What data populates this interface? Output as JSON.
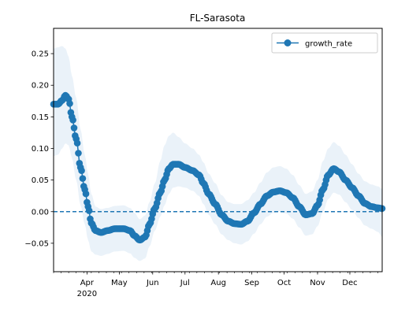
{
  "chart_data": {
    "type": "line",
    "title": "FL-Sarasota",
    "xlabel": "",
    "ylabel": "",
    "x_range": [
      "2020-03-01",
      "2020-12-31"
    ],
    "ylim": [
      -0.095,
      0.29
    ],
    "x_ticks": [
      {
        "date": "2020-04-01",
        "label": "Apr",
        "sublabel": "2020"
      },
      {
        "date": "2020-05-01",
        "label": "May",
        "sublabel": ""
      },
      {
        "date": "2020-06-01",
        "label": "Jun",
        "sublabel": ""
      },
      {
        "date": "2020-07-01",
        "label": "Jul",
        "sublabel": ""
      },
      {
        "date": "2020-08-01",
        "label": "Aug",
        "sublabel": ""
      },
      {
        "date": "2020-09-01",
        "label": "Sep",
        "sublabel": ""
      },
      {
        "date": "2020-10-01",
        "label": "Oct",
        "sublabel": ""
      },
      {
        "date": "2020-11-01",
        "label": "Nov",
        "sublabel": ""
      },
      {
        "date": "2020-12-01",
        "label": "Dec",
        "sublabel": ""
      }
    ],
    "y_ticks": [
      {
        "value": 0.25,
        "label": "0.25"
      },
      {
        "value": 0.2,
        "label": "0.20"
      },
      {
        "value": 0.15,
        "label": "0.15"
      },
      {
        "value": 0.1,
        "label": "0.10"
      },
      {
        "value": 0.05,
        "label": "0.05"
      },
      {
        "value": 0.0,
        "label": "0.00"
      },
      {
        "value": -0.05,
        "label": "−0.05"
      }
    ],
    "reference_line": {
      "y": 0.0,
      "style": "dashed",
      "color": "#1f77b4"
    },
    "legend": {
      "position": "top-right",
      "entries": [
        {
          "label": "growth_rate",
          "color": "#1f77b4"
        }
      ]
    },
    "series": [
      {
        "name": "growth_rate",
        "color": "#1f77b4",
        "band_color": "#dce9f5",
        "keypoints": [
          {
            "date": "2020-03-01",
            "y": 0.17,
            "lo": 0.088,
            "hi": 0.258
          },
          {
            "date": "2020-03-05",
            "y": 0.17,
            "lo": 0.09,
            "hi": 0.26
          },
          {
            "date": "2020-03-09",
            "y": 0.176,
            "lo": 0.1,
            "hi": 0.262
          },
          {
            "date": "2020-03-12",
            "y": 0.184,
            "lo": 0.108,
            "hi": 0.258
          },
          {
            "date": "2020-03-15",
            "y": 0.178,
            "lo": 0.105,
            "hi": 0.245
          },
          {
            "date": "2020-03-18",
            "y": 0.15,
            "lo": 0.085,
            "hi": 0.215
          },
          {
            "date": "2020-03-22",
            "y": 0.115,
            "lo": 0.05,
            "hi": 0.18
          },
          {
            "date": "2020-03-26",
            "y": 0.07,
            "lo": 0.01,
            "hi": 0.13
          },
          {
            "date": "2020-03-30",
            "y": 0.035,
            "lo": -0.02,
            "hi": 0.09
          },
          {
            "date": "2020-04-02",
            "y": 0.008,
            "lo": -0.045,
            "hi": 0.06
          },
          {
            "date": "2020-04-05",
            "y": -0.018,
            "lo": -0.063,
            "hi": 0.028
          },
          {
            "date": "2020-04-09",
            "y": -0.03,
            "lo": -0.068,
            "hi": 0.008
          },
          {
            "date": "2020-04-14",
            "y": -0.033,
            "lo": -0.07,
            "hi": 0.004
          },
          {
            "date": "2020-04-20",
            "y": -0.03,
            "lo": -0.067,
            "hi": 0.006
          },
          {
            "date": "2020-04-27",
            "y": -0.027,
            "lo": -0.063,
            "hi": 0.009
          },
          {
            "date": "2020-05-05",
            "y": -0.027,
            "lo": -0.062,
            "hi": 0.01
          },
          {
            "date": "2020-05-11",
            "y": -0.03,
            "lo": -0.066,
            "hi": 0.006
          },
          {
            "date": "2020-05-15",
            "y": -0.038,
            "lo": -0.073,
            "hi": -0.002
          },
          {
            "date": "2020-05-20",
            "y": -0.045,
            "lo": -0.078,
            "hi": -0.012
          },
          {
            "date": "2020-05-25",
            "y": -0.04,
            "lo": -0.074,
            "hi": -0.006
          },
          {
            "date": "2020-05-29",
            "y": -0.02,
            "lo": -0.055,
            "hi": 0.015
          },
          {
            "date": "2020-06-03",
            "y": 0.005,
            "lo": -0.03,
            "hi": 0.045
          },
          {
            "date": "2020-06-08",
            "y": 0.03,
            "lo": -0.008,
            "hi": 0.08
          },
          {
            "date": "2020-06-12",
            "y": 0.05,
            "lo": 0.01,
            "hi": 0.105
          },
          {
            "date": "2020-06-16",
            "y": 0.068,
            "lo": 0.028,
            "hi": 0.12
          },
          {
            "date": "2020-06-20",
            "y": 0.075,
            "lo": 0.038,
            "hi": 0.125
          },
          {
            "date": "2020-06-25",
            "y": 0.075,
            "lo": 0.04,
            "hi": 0.118
          },
          {
            "date": "2020-07-01",
            "y": 0.07,
            "lo": 0.038,
            "hi": 0.108
          },
          {
            "date": "2020-07-08",
            "y": 0.065,
            "lo": 0.033,
            "hi": 0.1
          },
          {
            "date": "2020-07-14",
            "y": 0.058,
            "lo": 0.025,
            "hi": 0.09
          },
          {
            "date": "2020-07-18",
            "y": 0.045,
            "lo": 0.012,
            "hi": 0.078
          },
          {
            "date": "2020-07-23",
            "y": 0.028,
            "lo": -0.005,
            "hi": 0.06
          },
          {
            "date": "2020-07-29",
            "y": 0.012,
            "lo": -0.02,
            "hi": 0.045
          },
          {
            "date": "2020-08-04",
            "y": -0.005,
            "lo": -0.036,
            "hi": 0.026
          },
          {
            "date": "2020-08-10",
            "y": -0.015,
            "lo": -0.045,
            "hi": 0.015
          },
          {
            "date": "2020-08-16",
            "y": -0.019,
            "lo": -0.05,
            "hi": 0.012
          },
          {
            "date": "2020-08-22",
            "y": -0.02,
            "lo": -0.052,
            "hi": 0.012
          },
          {
            "date": "2020-08-28",
            "y": -0.015,
            "lo": -0.047,
            "hi": 0.018
          },
          {
            "date": "2020-09-03",
            "y": -0.002,
            "lo": -0.035,
            "hi": 0.03
          },
          {
            "date": "2020-09-09",
            "y": 0.012,
            "lo": -0.02,
            "hi": 0.046
          },
          {
            "date": "2020-09-15",
            "y": 0.025,
            "lo": -0.008,
            "hi": 0.062
          },
          {
            "date": "2020-09-21",
            "y": 0.031,
            "lo": -0.002,
            "hi": 0.07
          },
          {
            "date": "2020-09-27",
            "y": 0.033,
            "lo": 0.0,
            "hi": 0.072
          },
          {
            "date": "2020-10-03",
            "y": 0.03,
            "lo": -0.003,
            "hi": 0.068
          },
          {
            "date": "2020-10-09",
            "y": 0.022,
            "lo": -0.011,
            "hi": 0.058
          },
          {
            "date": "2020-10-15",
            "y": 0.008,
            "lo": -0.025,
            "hi": 0.042
          },
          {
            "date": "2020-10-21",
            "y": -0.005,
            "lo": -0.038,
            "hi": 0.028
          },
          {
            "date": "2020-10-27",
            "y": -0.003,
            "lo": -0.036,
            "hi": 0.032
          },
          {
            "date": "2020-11-01",
            "y": 0.01,
            "lo": -0.023,
            "hi": 0.05
          },
          {
            "date": "2020-11-06",
            "y": 0.035,
            "lo": 0.0,
            "hi": 0.08
          },
          {
            "date": "2020-11-11",
            "y": 0.058,
            "lo": 0.02,
            "hi": 0.1
          },
          {
            "date": "2020-11-16",
            "y": 0.068,
            "lo": 0.03,
            "hi": 0.11
          },
          {
            "date": "2020-11-21",
            "y": 0.063,
            "lo": 0.027,
            "hi": 0.104
          },
          {
            "date": "2020-11-27",
            "y": 0.05,
            "lo": 0.015,
            "hi": 0.09
          },
          {
            "date": "2020-12-03",
            "y": 0.038,
            "lo": 0.003,
            "hi": 0.075
          },
          {
            "date": "2020-12-09",
            "y": 0.025,
            "lo": -0.01,
            "hi": 0.06
          },
          {
            "date": "2020-12-15",
            "y": 0.013,
            "lo": -0.022,
            "hi": 0.048
          },
          {
            "date": "2020-12-21",
            "y": 0.008,
            "lo": -0.027,
            "hi": 0.043
          },
          {
            "date": "2020-12-27",
            "y": 0.006,
            "lo": -0.032,
            "hi": 0.04
          },
          {
            "date": "2020-12-31",
            "y": 0.005,
            "lo": -0.04,
            "hi": 0.036
          }
        ]
      }
    ]
  }
}
